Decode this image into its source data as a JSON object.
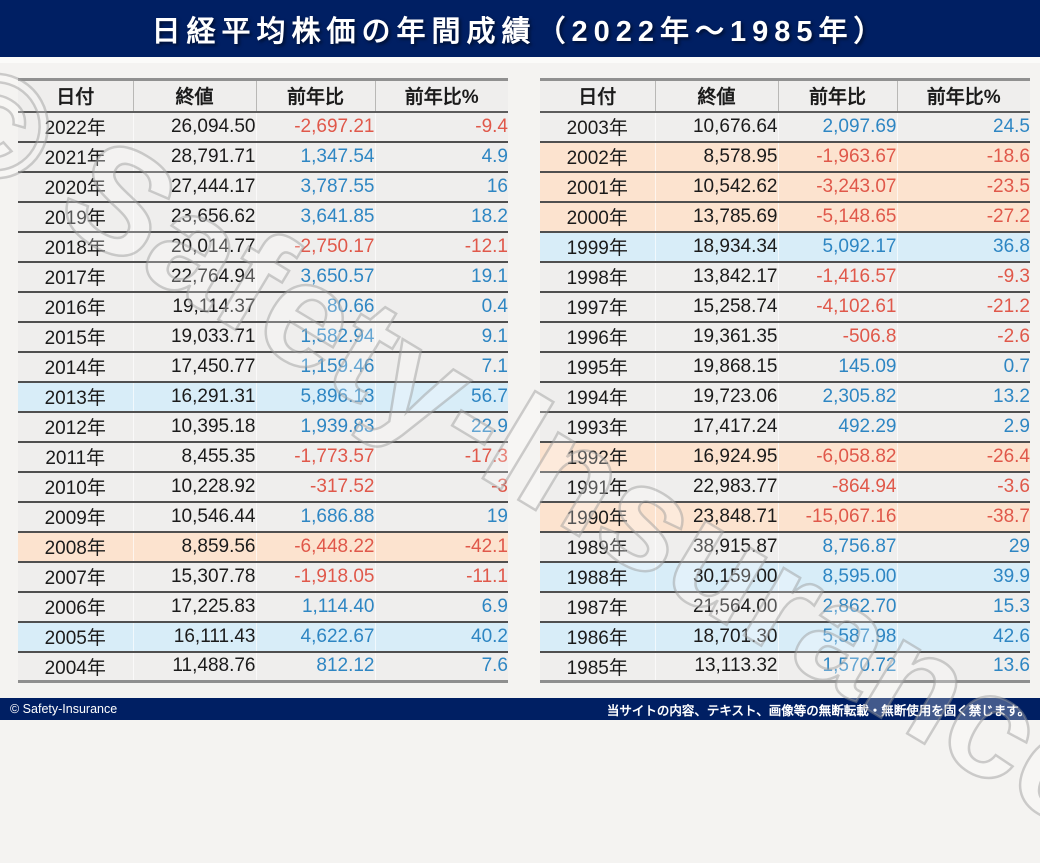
{
  "title": "日経平均株価の年間成績（2022年〜1985年）",
  "columns": [
    "日付",
    "終値",
    "前年比",
    "前年比%"
  ],
  "tables": {
    "left": {
      "rows": [
        {
          "year": "2022年",
          "close": "26,094.50",
          "change": "-2,697.21",
          "change_pct": "-9.4",
          "highlight": ""
        },
        {
          "year": "2021年",
          "close": "28,791.71",
          "change": "1,347.54",
          "change_pct": "4.9",
          "highlight": ""
        },
        {
          "year": "2020年",
          "close": "27,444.17",
          "change": "3,787.55",
          "change_pct": "16",
          "highlight": ""
        },
        {
          "year": "2019年",
          "close": "23,656.62",
          "change": "3,641.85",
          "change_pct": "18.2",
          "highlight": ""
        },
        {
          "year": "2018年",
          "close": "20,014.77",
          "change": "-2,750.17",
          "change_pct": "-12.1",
          "highlight": ""
        },
        {
          "year": "2017年",
          "close": "22,764.94",
          "change": "3,650.57",
          "change_pct": "19.1",
          "highlight": ""
        },
        {
          "year": "2016年",
          "close": "19,114.37",
          "change": "80.66",
          "change_pct": "0.4",
          "highlight": ""
        },
        {
          "year": "2015年",
          "close": "19,033.71",
          "change": "1,582.94",
          "change_pct": "9.1",
          "highlight": ""
        },
        {
          "year": "2014年",
          "close": "17,450.77",
          "change": "1,159.46",
          "change_pct": "7.1",
          "highlight": ""
        },
        {
          "year": "2013年",
          "close": "16,291.31",
          "change": "5,896.13",
          "change_pct": "56.7",
          "highlight": "blue"
        },
        {
          "year": "2012年",
          "close": "10,395.18",
          "change": "1,939.83",
          "change_pct": "22.9",
          "highlight": ""
        },
        {
          "year": "2011年",
          "close": "8,455.35",
          "change": "-1,773.57",
          "change_pct": "-17.3",
          "highlight": ""
        },
        {
          "year": "2010年",
          "close": "10,228.92",
          "change": "-317.52",
          "change_pct": "-3",
          "highlight": ""
        },
        {
          "year": "2009年",
          "close": "10,546.44",
          "change": "1,686.88",
          "change_pct": "19",
          "highlight": ""
        },
        {
          "year": "2008年",
          "close": "8,859.56",
          "change": "-6,448.22",
          "change_pct": "-42.1",
          "highlight": "orange"
        },
        {
          "year": "2007年",
          "close": "15,307.78",
          "change": "-1,918.05",
          "change_pct": "-11.1",
          "highlight": ""
        },
        {
          "year": "2006年",
          "close": "17,225.83",
          "change": "1,114.40",
          "change_pct": "6.9",
          "highlight": ""
        },
        {
          "year": "2005年",
          "close": "16,111.43",
          "change": "4,622.67",
          "change_pct": "40.2",
          "highlight": "blue"
        },
        {
          "year": "2004年",
          "close": "11,488.76",
          "change": "812.12",
          "change_pct": "7.6",
          "highlight": ""
        }
      ]
    },
    "right": {
      "rows": [
        {
          "year": "2003年",
          "close": "10,676.64",
          "change": "2,097.69",
          "change_pct": "24.5",
          "highlight": ""
        },
        {
          "year": "2002年",
          "close": "8,578.95",
          "change": "-1,963.67",
          "change_pct": "-18.6",
          "highlight": "orange"
        },
        {
          "year": "2001年",
          "close": "10,542.62",
          "change": "-3,243.07",
          "change_pct": "-23.5",
          "highlight": "orange"
        },
        {
          "year": "2000年",
          "close": "13,785.69",
          "change": "-5,148.65",
          "change_pct": "-27.2",
          "highlight": "orange"
        },
        {
          "year": "1999年",
          "close": "18,934.34",
          "change": "5,092.17",
          "change_pct": "36.8",
          "highlight": "blue"
        },
        {
          "year": "1998年",
          "close": "13,842.17",
          "change": "-1,416.57",
          "change_pct": "-9.3",
          "highlight": ""
        },
        {
          "year": "1997年",
          "close": "15,258.74",
          "change": "-4,102.61",
          "change_pct": "-21.2",
          "highlight": ""
        },
        {
          "year": "1996年",
          "close": "19,361.35",
          "change": "-506.8",
          "change_pct": "-2.6",
          "highlight": ""
        },
        {
          "year": "1995年",
          "close": "19,868.15",
          "change": "145.09",
          "change_pct": "0.7",
          "highlight": ""
        },
        {
          "year": "1994年",
          "close": "19,723.06",
          "change": "2,305.82",
          "change_pct": "13.2",
          "highlight": ""
        },
        {
          "year": "1993年",
          "close": "17,417.24",
          "change": "492.29",
          "change_pct": "2.9",
          "highlight": ""
        },
        {
          "year": "1992年",
          "close": "16,924.95",
          "change": "-6,058.82",
          "change_pct": "-26.4",
          "highlight": "orange"
        },
        {
          "year": "1991年",
          "close": "22,983.77",
          "change": "-864.94",
          "change_pct": "-3.6",
          "highlight": ""
        },
        {
          "year": "1990年",
          "close": "23,848.71",
          "change": "-15,067.16",
          "change_pct": "-38.7",
          "highlight": "orange"
        },
        {
          "year": "1989年",
          "close": "38,915.87",
          "change": "8,756.87",
          "change_pct": "29",
          "highlight": ""
        },
        {
          "year": "1988年",
          "close": "30,159.00",
          "change": "8,595.00",
          "change_pct": "39.9",
          "highlight": "blue"
        },
        {
          "year": "1987年",
          "close": "21,564.00",
          "change": "2,862.70",
          "change_pct": "15.3",
          "highlight": ""
        },
        {
          "year": "1986年",
          "close": "18,701.30",
          "change": "5,587.98",
          "change_pct": "42.6",
          "highlight": "blue"
        },
        {
          "year": "1985年",
          "close": "13,113.32",
          "change": "1,570.72",
          "change_pct": "13.6",
          "highlight": ""
        }
      ]
    }
  },
  "watermark": "© Safety-Insurance",
  "footer": {
    "copyright": "© Safety-Insurance",
    "notice": "当サイトの内容、テキスト、画像等の無断転載・無断使用を固く禁じます。"
  },
  "colors": {
    "navy": "#001f63",
    "page_bg": "#f4f3f1",
    "row_bg": "#efeeed",
    "highlight_blue": "#d8edf8",
    "highlight_orange": "#fce3cf",
    "positive_text": "#2e86c3",
    "negative_text": "#e0584a"
  },
  "chart_data": {
    "type": "table",
    "title": "日経平均株価の年間成績（2022年〜1985年）",
    "columns": [
      "日付",
      "終値",
      "前年比",
      "前年比%"
    ],
    "rows": [
      [
        "2022年",
        26094.5,
        -2697.21,
        -9.4
      ],
      [
        "2021年",
        28791.71,
        1347.54,
        4.9
      ],
      [
        "2020年",
        27444.17,
        3787.55,
        16
      ],
      [
        "2019年",
        23656.62,
        3641.85,
        18.2
      ],
      [
        "2018年",
        20014.77,
        -2750.17,
        -12.1
      ],
      [
        "2017年",
        22764.94,
        3650.57,
        19.1
      ],
      [
        "2016年",
        19114.37,
        80.66,
        0.4
      ],
      [
        "2015年",
        19033.71,
        1582.94,
        9.1
      ],
      [
        "2014年",
        17450.77,
        1159.46,
        7.1
      ],
      [
        "2013年",
        16291.31,
        5896.13,
        56.7
      ],
      [
        "2012年",
        10395.18,
        1939.83,
        22.9
      ],
      [
        "2011年",
        8455.35,
        -1773.57,
        -17.3
      ],
      [
        "2010年",
        10228.92,
        -317.52,
        -3
      ],
      [
        "2009年",
        10546.44,
        1686.88,
        19
      ],
      [
        "2008年",
        8859.56,
        -6448.22,
        -42.1
      ],
      [
        "2007年",
        15307.78,
        -1918.05,
        -11.1
      ],
      [
        "2006年",
        17225.83,
        1114.4,
        6.9
      ],
      [
        "2005年",
        16111.43,
        4622.67,
        40.2
      ],
      [
        "2004年",
        11488.76,
        812.12,
        7.6
      ],
      [
        "2003年",
        10676.64,
        2097.69,
        24.5
      ],
      [
        "2002年",
        8578.95,
        -1963.67,
        -18.6
      ],
      [
        "2001年",
        10542.62,
        -3243.07,
        -23.5
      ],
      [
        "2000年",
        13785.69,
        -5148.65,
        -27.2
      ],
      [
        "1999年",
        18934.34,
        5092.17,
        36.8
      ],
      [
        "1998年",
        13842.17,
        -1416.57,
        -9.3
      ],
      [
        "1997年",
        15258.74,
        -4102.61,
        -21.2
      ],
      [
        "1996年",
        19361.35,
        -506.8,
        -2.6
      ],
      [
        "1995年",
        19868.15,
        145.09,
        0.7
      ],
      [
        "1994年",
        19723.06,
        2305.82,
        13.2
      ],
      [
        "1993年",
        17417.24,
        492.29,
        2.9
      ],
      [
        "1992年",
        16924.95,
        -6058.82,
        -26.4
      ],
      [
        "1991年",
        22983.77,
        -864.94,
        -3.6
      ],
      [
        "1990年",
        23848.71,
        -15067.16,
        -38.7
      ],
      [
        "1989年",
        38915.87,
        8756.87,
        29
      ],
      [
        "1988年",
        30159.0,
        8595.0,
        39.9
      ],
      [
        "1987年",
        21564.0,
        2862.7,
        15.3
      ],
      [
        "1986年",
        18701.3,
        5587.98,
        42.6
      ],
      [
        "1985年",
        13113.32,
        1570.72,
        13.6
      ]
    ]
  }
}
